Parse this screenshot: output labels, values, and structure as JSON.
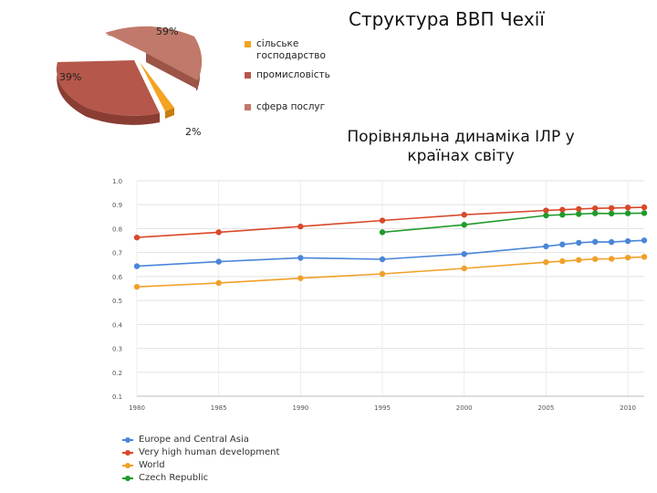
{
  "titles": {
    "gdp_title": "Структура ВВП Чехії",
    "hdi_title": "Порівняльна динаміка ІЛР у країнах світу"
  },
  "chart_data": [
    {
      "type": "pie",
      "title": "Структура ВВП Чехії",
      "slices": [
        {
          "label": "сільське господарство",
          "value_label": "2%",
          "value": 2,
          "color": "#f4a322"
        },
        {
          "label": "промисловість",
          "value_label": "39%",
          "value": 39,
          "color": "#b5574a"
        },
        {
          "label": "сфера послуг",
          "value_label": "59%",
          "value": 59,
          "color": "#c0796a"
        }
      ],
      "legend_position": "right"
    },
    {
      "type": "line",
      "title": "Порівняльна динаміка ІЛР у країнах світу",
      "x_ticks": [
        "1980",
        "1985",
        "1990",
        "1995",
        "2000",
        "2005",
        "2010"
      ],
      "y_ticks": [
        "0.1",
        "0.2",
        "0.3",
        "0.4",
        "0.5",
        "0.6",
        "0.7",
        "0.8",
        "0.9",
        "1.0"
      ],
      "xlim": [
        1980,
        2011
      ],
      "ylim": [
        0.1,
        1.0
      ],
      "grid": true,
      "legend_position": "bottom",
      "series": [
        {
          "name": "Europe and Central Asia",
          "color": "#4a86d8",
          "x": [
            1980,
            1985,
            1990,
            1995,
            2000,
            2005,
            2006,
            2007,
            2008,
            2009,
            2010,
            2011
          ],
          "y": [
            0.643,
            0.662,
            0.678,
            0.672,
            0.694,
            0.726,
            0.734,
            0.741,
            0.745,
            0.744,
            0.748,
            0.751
          ]
        },
        {
          "name": "Very high human development",
          "color": "#d9482b",
          "x": [
            1980,
            1985,
            1990,
            1995,
            2000,
            2005,
            2006,
            2007,
            2008,
            2009,
            2010,
            2011
          ],
          "y": [
            0.763,
            0.785,
            0.809,
            0.834,
            0.858,
            0.876,
            0.879,
            0.882,
            0.885,
            0.886,
            0.888,
            0.889
          ]
        },
        {
          "name": "World",
          "color": "#f0a028",
          "x": [
            1980,
            1985,
            1990,
            1995,
            2000,
            2005,
            2006,
            2007,
            2008,
            2009,
            2010,
            2011
          ],
          "y": [
            0.557,
            0.573,
            0.593,
            0.611,
            0.634,
            0.66,
            0.664,
            0.669,
            0.673,
            0.674,
            0.679,
            0.682
          ]
        },
        {
          "name": "Czech Republic",
          "color": "#1f9a2a",
          "x": [
            1995,
            2000,
            2005,
            2006,
            2007,
            2008,
            2009,
            2010,
            2011
          ],
          "y": [
            0.785,
            0.816,
            0.855,
            0.858,
            0.861,
            0.864,
            0.863,
            0.864,
            0.865
          ]
        }
      ]
    }
  ]
}
